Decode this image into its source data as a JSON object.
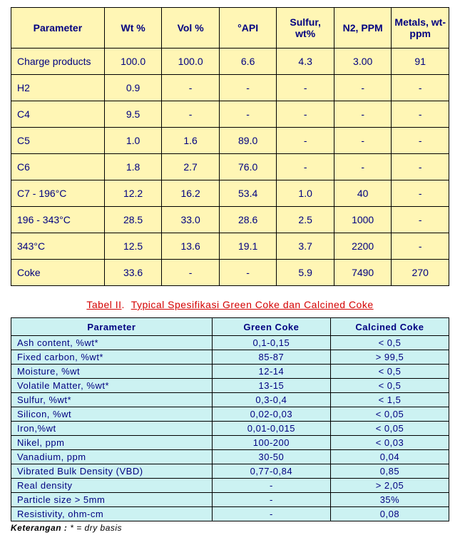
{
  "table1": {
    "headers": [
      "Parameter",
      "Wt %",
      "Vol %",
      "°API",
      "Sulfur, wt%",
      "N2, PPM",
      "Metals, wt-ppm"
    ],
    "rows": [
      {
        "param": "Charge products",
        "wt": "100.0",
        "vol": "100.0",
        "api": "6.6",
        "s": "4.3",
        "n2": "3.00",
        "met": "91"
      },
      {
        "param": "H2",
        "wt": "0.9",
        "vol": "-",
        "api": "-",
        "s": "-",
        "n2": "-",
        "met": "-"
      },
      {
        "param": "C4",
        "wt": "9.5",
        "vol": "-",
        "api": "-",
        "s": "-",
        "n2": "-",
        "met": "-"
      },
      {
        "param": "C5",
        "wt": "1.0",
        "vol": "1.6",
        "api": "89.0",
        "s": "-",
        "n2": "-",
        "met": "-"
      },
      {
        "param": "C6",
        "wt": "1.8",
        "vol": "2.7",
        "api": "76.0",
        "s": "-",
        "n2": "-",
        "met": "-"
      },
      {
        "param": "C7 - 196°C",
        "wt": "12.2",
        "vol": "16.2",
        "api": "53.4",
        "s": "1.0",
        "n2": "40",
        "met": "-"
      },
      {
        "param": "196 - 343°C",
        "wt": "28.5",
        "vol": "33.0",
        "api": "28.6",
        "s": "2.5",
        "n2": "1000",
        "met": "-"
      },
      {
        "param": "343°C",
        "wt": "12.5",
        "vol": "13.6",
        "api": "19.1",
        "s": "3.7",
        "n2": "2200",
        "met": "-"
      },
      {
        "param": "Coke",
        "wt": "33.6",
        "vol": "-",
        "api": "-",
        "s": "5.9",
        "n2": "7490",
        "met": "270"
      }
    ],
    "header_bg": "#fff6b5",
    "cell_bg": "#fff6b5",
    "text_color": "#000080",
    "border_color": "#000000"
  },
  "caption2": {
    "label": "Tabel II",
    "text": "Typical Spesifikasi Green Coke dan Calcined Coke",
    "color": "#d40000"
  },
  "table2": {
    "headers": [
      "Parameter",
      "Green Coke",
      "Calcined Coke"
    ],
    "rows": [
      {
        "p": "Ash content, %wt*",
        "g": "0,1-0,15",
        "c": "< 0,5"
      },
      {
        "p": "Fixed carbon, %wt*",
        "g": "85-87",
        "c": "> 99,5"
      },
      {
        "p": "Moisture, %wt",
        "g": "12-14",
        "c": "< 0,5"
      },
      {
        "p": "Volatile Matter, %wt*",
        "g": "13-15",
        "c": "< 0,5"
      },
      {
        "p": "Sulfur, %wt*",
        "g": "0,3-0,4",
        "c": "< 1,5"
      },
      {
        "p": "Silicon, %wt",
        "g": "0,02-0,03",
        "c": "< 0,05"
      },
      {
        "p": "Iron,%wt",
        "g": "0,01-0,015",
        "c": "< 0,05"
      },
      {
        "p": "Nikel, ppm",
        "g": "100-200",
        "c": "< 0,03"
      },
      {
        "p": "Vanadium, ppm",
        "g": "30-50",
        "c": "0,04"
      },
      {
        "p": "Vibrated Bulk Density (VBD)",
        "g": "0,77-0,84",
        "c": "0,85"
      },
      {
        "p": "Real density",
        "g": "-",
        "c": "> 2,05"
      },
      {
        "p": "Particle size > 5mm",
        "g": "-",
        "c": "35%"
      },
      {
        "p": "Resistivity, ohm-cm",
        "g": "-",
        "c": "0,08"
      }
    ],
    "bg": "#ccf2f2",
    "text_color": "#000080",
    "border_color": "#000000"
  },
  "footnote": {
    "label": "Keterangan :",
    "text": " * = dry basis"
  }
}
